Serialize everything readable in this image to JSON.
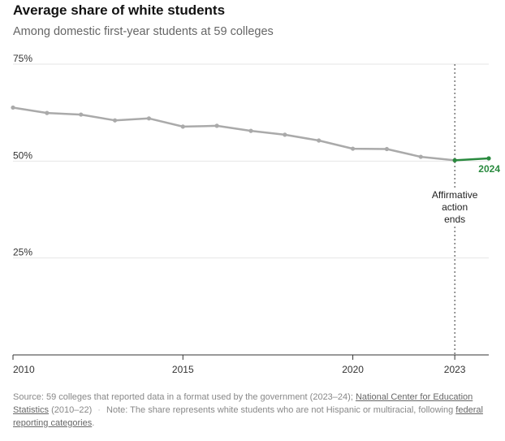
{
  "title": "Average share of white students",
  "subtitle": "Among domestic first-year students at 59 colleges",
  "chart_data": {
    "type": "line",
    "title": "Average share of white students",
    "subtitle": "Among domestic first-year students at 59 colleges",
    "xlim": [
      2010,
      2024
    ],
    "ylim": [
      0,
      75
    ],
    "y_ticks": [
      {
        "value": 75,
        "label": "75%"
      },
      {
        "value": 50,
        "label": "50%"
      },
      {
        "value": 25,
        "label": "25%"
      }
    ],
    "x_ticks": [
      {
        "value": 2010,
        "label": "2010"
      },
      {
        "value": 2015,
        "label": "2015"
      },
      {
        "value": 2020,
        "label": "2020"
      },
      {
        "value": 2023,
        "label": "2023"
      }
    ],
    "grid": true,
    "series": [
      {
        "color": "#aaaaaa",
        "x": [
          2010,
          2011,
          2012,
          2013,
          2014,
          2015,
          2016,
          2017,
          2018,
          2019,
          2020,
          2021,
          2022,
          2023
        ],
        "y": [
          63.8,
          62.4,
          62.0,
          60.5,
          61.0,
          58.9,
          59.1,
          57.8,
          56.8,
          55.3,
          53.2,
          53.1,
          51.1,
          50.2
        ]
      },
      {
        "color": "#2a8a3f",
        "x": [
          2023,
          2024
        ],
        "y": [
          50.2,
          50.7
        ],
        "end_label": "2024"
      }
    ],
    "annotation": {
      "x": 2023,
      "lines": [
        "Affirmative",
        "action",
        "ends"
      ]
    }
  },
  "footer": {
    "source_prefix": "Source: 59 colleges that reported data in a format used by the government (2023–24);",
    "source_link": "National Center for Education Statistics",
    "source_suffix": "(2010–22)",
    "note_prefix": "Note: The share represents white students who are not Hispanic or multiracial, following",
    "note_link": "federal reporting categories",
    "note_suffix": "."
  }
}
